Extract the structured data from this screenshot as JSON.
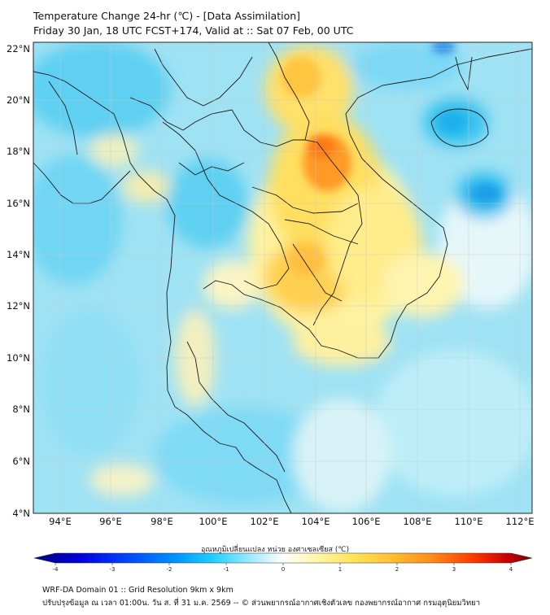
{
  "title_line1": "Temperature Change 24-hr (℃) - [Data Assimilation]",
  "title_line2": "Friday 30 Jan, 18 UTC FCST+174, Valid at :: Sat 07 Feb, 00 UTC",
  "lat_labels": [
    "22°N",
    "20°N",
    "18°N",
    "16°N",
    "14°N",
    "12°N",
    "10°N",
    "8°N",
    "6°N",
    "4°N"
  ],
  "lon_labels": [
    "94°E",
    "96°E",
    "98°E",
    "100°E",
    "102°E",
    "104°E",
    "106°E",
    "108°E",
    "110°E",
    "112°E"
  ],
  "colorbar": {
    "title": "อุณหภูมิเปลี่ยนแปลง หน่วย องศาเซลเซียส (℃)",
    "ticks": [
      "-4",
      "-3",
      "-2",
      "-1",
      "0",
      "1",
      "2",
      "3",
      "4"
    ],
    "min": -4,
    "max": 4,
    "colors": [
      "#00007f",
      "#0000c8",
      "#0030ff",
      "#0080ff",
      "#00c0ff",
      "#50dcff",
      "#a0ecff",
      "#ffffff",
      "#fff7a0",
      "#ffe060",
      "#ffb830",
      "#ff8c1a",
      "#ff5000",
      "#e01000",
      "#8b0000"
    ]
  },
  "footer_line1": "WRF-DA Domain 01 :: Grid Resolution 9km x 9km",
  "footer_line2": "ปรับปรุงข้อมูล ณ เวลา 01:00น. วัน ส. ที่ 31 ม.ค. 2569 -- © ส่วนพยากรณ์อากาศเชิงตัวเลข กองพยากรณ์อากาศ กรมอุตุนิยมวิทยา"
}
